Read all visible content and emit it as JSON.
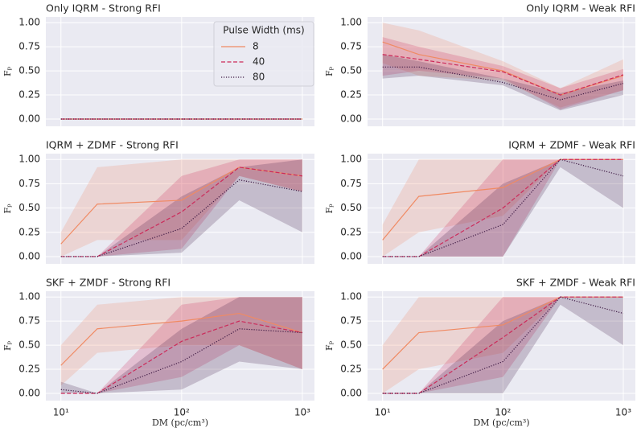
{
  "chart_data": [
    {
      "type": "line",
      "title": "Only IQRM - Strong RFI",
      "title_loc": "left",
      "xscale": "log",
      "grid": true,
      "ylabel": "Fₚ",
      "x": [
        10,
        20,
        100,
        300,
        1000
      ],
      "xlim": [
        7.5,
        1260
      ],
      "xticks": [
        {
          "value": 10,
          "label": "10¹"
        },
        {
          "value": 100,
          "label": "10²"
        },
        {
          "value": 1000,
          "label": "10³"
        }
      ],
      "ylim": [
        -0.075,
        1.06
      ],
      "yticks": [
        {
          "value": 0,
          "label": "0.00"
        },
        {
          "value": 0.25,
          "label": "0.25"
        },
        {
          "value": 0.5,
          "label": "0.50"
        },
        {
          "value": 0.75,
          "label": "0.75"
        },
        {
          "value": 1,
          "label": "1.00"
        }
      ],
      "legend": "upper right",
      "legend_title": "Pulse Width (ms)",
      "series": [
        {
          "name": "8",
          "color": "#f08a63",
          "linestyle": "solid",
          "values": [
            0,
            0,
            0,
            0,
            0
          ],
          "lower": [
            0,
            0,
            0,
            0,
            0
          ],
          "upper": [
            0,
            0,
            0,
            0,
            0
          ]
        },
        {
          "name": "40",
          "color": "#cc2a5a",
          "linestyle": "dashed",
          "values": [
            0,
            0,
            0,
            0,
            0
          ],
          "lower": [
            0,
            0,
            0,
            0,
            0
          ],
          "upper": [
            0,
            0,
            0,
            0,
            0
          ]
        },
        {
          "name": "80",
          "color": "#3e1a44",
          "linestyle": "dotted",
          "values": [
            0,
            0,
            0,
            0,
            0
          ],
          "lower": [
            0,
            0,
            0,
            0,
            0
          ],
          "upper": [
            0,
            0,
            0,
            0,
            0
          ]
        }
      ]
    },
    {
      "type": "line",
      "title": "Only IQRM - Weak RFI",
      "title_loc": "right",
      "xscale": "log",
      "grid": true,
      "ylabel": "Fₚ",
      "x": [
        10,
        20,
        100,
        300,
        1000
      ],
      "xlim": [
        7.5,
        1260
      ],
      "xticks": [
        {
          "value": 10,
          "label": "10¹"
        },
        {
          "value": 100,
          "label": "10²"
        },
        {
          "value": 1000,
          "label": "10³"
        }
      ],
      "ylim": [
        -0.075,
        1.06
      ],
      "yticks": [
        {
          "value": 0,
          "label": "0.00"
        },
        {
          "value": 0.25,
          "label": "0.25"
        },
        {
          "value": 0.5,
          "label": "0.50"
        },
        {
          "value": 0.75,
          "label": "0.75"
        },
        {
          "value": 1,
          "label": "1.00"
        }
      ],
      "series": [
        {
          "name": "8",
          "color": "#f08a63",
          "linestyle": "solid",
          "values": [
            0.8,
            0.67,
            0.5,
            0.25,
            0.45
          ],
          "lower": [
            0.58,
            0.45,
            0.4,
            0.12,
            0.3
          ],
          "upper": [
            1,
            0.92,
            0.6,
            0.32,
            0.62
          ]
        },
        {
          "name": "40",
          "color": "#cc2a5a",
          "linestyle": "dashed",
          "values": [
            0.67,
            0.62,
            0.49,
            0.25,
            0.46
          ],
          "lower": [
            0.45,
            0.5,
            0.42,
            0.1,
            0.3
          ],
          "upper": [
            0.85,
            0.75,
            0.55,
            0.32,
            0.52
          ]
        },
        {
          "name": "80",
          "color": "#3e1a44",
          "linestyle": "dotted",
          "values": [
            0.54,
            0.54,
            0.38,
            0.2,
            0.37
          ],
          "lower": [
            0.42,
            0.45,
            0.35,
            0.09,
            0.25
          ],
          "upper": [
            0.67,
            0.6,
            0.42,
            0.27,
            0.4
          ]
        }
      ]
    },
    {
      "type": "line",
      "title": "IQRM + ZDMF - Strong RFI",
      "title_loc": "left",
      "xscale": "log",
      "grid": true,
      "ylabel": "Fₚ",
      "x": [
        10,
        20,
        100,
        300,
        1000
      ],
      "xlim": [
        7.5,
        1260
      ],
      "xticks": [
        {
          "value": 10,
          "label": "10¹"
        },
        {
          "value": 100,
          "label": "10²"
        },
        {
          "value": 1000,
          "label": "10³"
        }
      ],
      "ylim": [
        -0.075,
        1.06
      ],
      "yticks": [
        {
          "value": 0,
          "label": "0.00"
        },
        {
          "value": 0.25,
          "label": "0.25"
        },
        {
          "value": 0.5,
          "label": "0.50"
        },
        {
          "value": 0.75,
          "label": "0.75"
        },
        {
          "value": 1,
          "label": "1.00"
        }
      ],
      "series": [
        {
          "name": "8",
          "color": "#f08a63",
          "linestyle": "solid",
          "values": [
            0.13,
            0.54,
            0.58,
            0.92,
            0.83
          ],
          "lower": [
            0,
            0.17,
            0.17,
            0.83,
            0.67
          ],
          "upper": [
            0.25,
            0.92,
            1,
            1,
            1
          ]
        },
        {
          "name": "40",
          "color": "#cc2a5a",
          "linestyle": "dashed",
          "values": [
            0,
            0,
            0.46,
            0.92,
            0.83
          ],
          "lower": [
            0,
            0,
            0.08,
            0.83,
            0.67
          ],
          "upper": [
            0,
            0,
            0.83,
            1,
            1
          ]
        },
        {
          "name": "80",
          "color": "#3e1a44",
          "linestyle": "dotted",
          "values": [
            0,
            0,
            0.29,
            0.79,
            0.67
          ],
          "lower": [
            0,
            0,
            0.04,
            0.58,
            0.25
          ],
          "upper": [
            0,
            0,
            0.62,
            0.92,
            1
          ]
        }
      ]
    },
    {
      "type": "line",
      "title": "IQRM + ZDMF - Weak RFI",
      "title_loc": "right",
      "xscale": "log",
      "grid": true,
      "ylabel": "Fₚ",
      "x": [
        10,
        20,
        100,
        300,
        1000
      ],
      "xlim": [
        7.5,
        1260
      ],
      "xticks": [
        {
          "value": 10,
          "label": "10¹"
        },
        {
          "value": 100,
          "label": "10²"
        },
        {
          "value": 1000,
          "label": "10³"
        }
      ],
      "ylim": [
        -0.075,
        1.06
      ],
      "yticks": [
        {
          "value": 0,
          "label": "0.00"
        },
        {
          "value": 0.25,
          "label": "0.25"
        },
        {
          "value": 0.5,
          "label": "0.50"
        },
        {
          "value": 0.75,
          "label": "0.75"
        },
        {
          "value": 1,
          "label": "1.00"
        }
      ],
      "series": [
        {
          "name": "8",
          "color": "#f08a63",
          "linestyle": "solid",
          "values": [
            0.17,
            0.62,
            0.71,
            1,
            1
          ],
          "lower": [
            0,
            0.25,
            0.42,
            1,
            1
          ],
          "upper": [
            0.33,
            1,
            1,
            1,
            1
          ]
        },
        {
          "name": "40",
          "color": "#cc2a5a",
          "linestyle": "dashed",
          "values": [
            0,
            0,
            0.5,
            1,
            1
          ],
          "lower": [
            0,
            0,
            0,
            1,
            1
          ],
          "upper": [
            0,
            0,
            1,
            1,
            1
          ]
        },
        {
          "name": "80",
          "color": "#3e1a44",
          "linestyle": "dotted",
          "values": [
            0,
            0,
            0.33,
            1,
            0.83
          ],
          "lower": [
            0,
            0,
            0,
            0.92,
            0.5
          ],
          "upper": [
            0,
            0,
            0.75,
            1,
            1
          ]
        }
      ]
    },
    {
      "type": "line",
      "title": "SKF + ZMDF - Strong RFI",
      "title_loc": "left",
      "xscale": "log",
      "grid": true,
      "ylabel": "Fₚ",
      "xlabel": "DM (pc/cm³)",
      "x": [
        10,
        20,
        100,
        300,
        1000
      ],
      "xlim": [
        7.5,
        1260
      ],
      "xticks": [
        {
          "value": 10,
          "label": "10¹"
        },
        {
          "value": 100,
          "label": "10²"
        },
        {
          "value": 1000,
          "label": "10³"
        }
      ],
      "ylim": [
        -0.075,
        1.06
      ],
      "yticks": [
        {
          "value": 0,
          "label": "0.00"
        },
        {
          "value": 0.25,
          "label": "0.25"
        },
        {
          "value": 0.5,
          "label": "0.50"
        },
        {
          "value": 0.75,
          "label": "0.75"
        },
        {
          "value": 1,
          "label": "1.00"
        }
      ],
      "series": [
        {
          "name": "8",
          "color": "#f08a63",
          "linestyle": "solid",
          "values": [
            0.29,
            0.67,
            0.75,
            0.83,
            0.63
          ],
          "lower": [
            0.08,
            0.42,
            0.5,
            0.5,
            0.25
          ],
          "upper": [
            0.5,
            0.92,
            1,
            1,
            1
          ]
        },
        {
          "name": "40",
          "color": "#cc2a5a",
          "linestyle": "dashed",
          "values": [
            0,
            0,
            0.54,
            0.75,
            0.63
          ],
          "lower": [
            0,
            0,
            0.17,
            0.5,
            0.25
          ],
          "upper": [
            0,
            0,
            0.92,
            1,
            1
          ]
        },
        {
          "name": "80",
          "color": "#3e1a44",
          "linestyle": "dotted",
          "values": [
            0.04,
            0,
            0.33,
            0.67,
            0.63
          ],
          "lower": [
            0,
            0,
            0.04,
            0.33,
            0.25
          ],
          "upper": [
            0.12,
            0,
            0.67,
            1,
            1
          ]
        }
      ]
    },
    {
      "type": "line",
      "title": "SKF + ZMDF - Weak RFI",
      "title_loc": "right",
      "xscale": "log",
      "grid": true,
      "ylabel": "Fₚ",
      "xlabel": "DM (pc/cm³)",
      "x": [
        10,
        20,
        100,
        300,
        1000
      ],
      "xlim": [
        7.5,
        1260
      ],
      "xticks": [
        {
          "value": 10,
          "label": "10¹"
        },
        {
          "value": 100,
          "label": "10²"
        },
        {
          "value": 1000,
          "label": "10³"
        }
      ],
      "ylim": [
        -0.075,
        1.06
      ],
      "yticks": [
        {
          "value": 0,
          "label": "0.00"
        },
        {
          "value": 0.25,
          "label": "0.25"
        },
        {
          "value": 0.5,
          "label": "0.50"
        },
        {
          "value": 0.75,
          "label": "0.75"
        },
        {
          "value": 1,
          "label": "1.00"
        }
      ],
      "series": [
        {
          "name": "8",
          "color": "#f08a63",
          "linestyle": "solid",
          "values": [
            0.25,
            0.63,
            0.71,
            1,
            1
          ],
          "lower": [
            0,
            0.25,
            0.42,
            1,
            1
          ],
          "upper": [
            0.5,
            1,
            1,
            1,
            1
          ]
        },
        {
          "name": "40",
          "color": "#cc2a5a",
          "linestyle": "dashed",
          "values": [
            0,
            0,
            0.58,
            1,
            1
          ],
          "lower": [
            0,
            0,
            0.17,
            1,
            1
          ],
          "upper": [
            0,
            0,
            1,
            1,
            1
          ]
        },
        {
          "name": "80",
          "color": "#3e1a44",
          "linestyle": "dotted",
          "values": [
            0,
            0,
            0.33,
            1,
            0.83
          ],
          "lower": [
            0,
            0,
            0,
            0.92,
            0.5
          ],
          "upper": [
            0,
            0,
            0.75,
            1,
            1
          ]
        }
      ]
    }
  ]
}
